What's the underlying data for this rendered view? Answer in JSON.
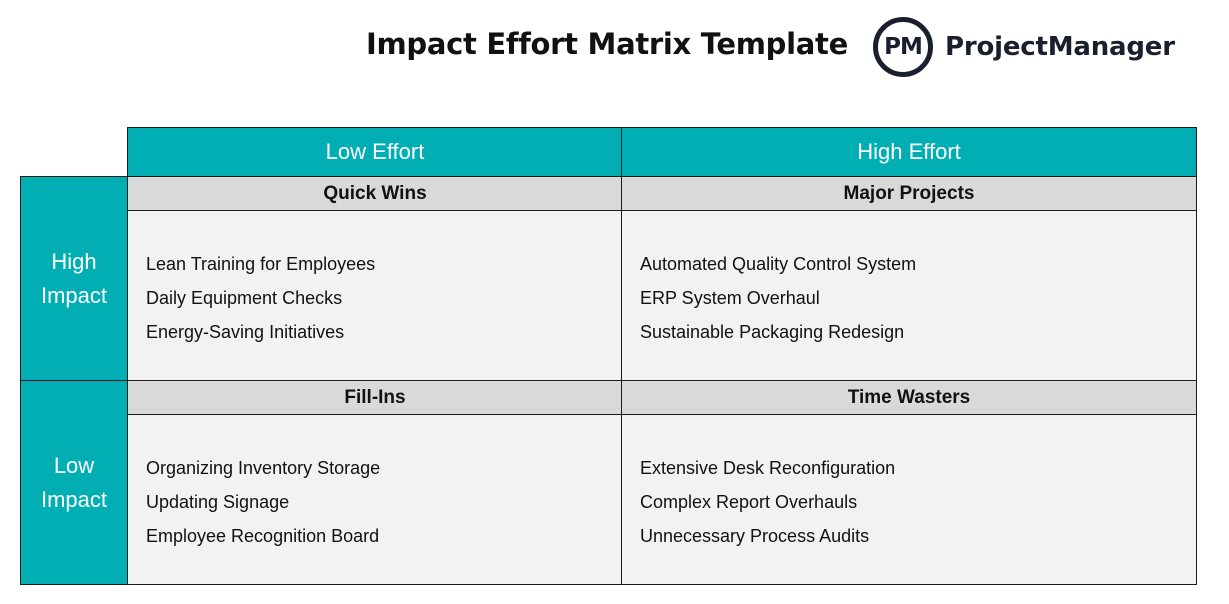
{
  "header": {
    "title": "Impact Effort Matrix Template",
    "logo_mark": "PM",
    "logo_text": "ProjectManager"
  },
  "columns": [
    "Low Effort",
    "High Effort"
  ],
  "rows": [
    {
      "line1": "High",
      "line2": "Impact"
    },
    {
      "line1": "Low",
      "line2": "Impact"
    }
  ],
  "quadrants": {
    "quick_wins": {
      "title": "Quick Wins",
      "items": [
        "Lean Training for Employees",
        "Daily Equipment Checks",
        "Energy-Saving Initiatives"
      ]
    },
    "major_projects": {
      "title": "Major Projects",
      "items": [
        "Automated Quality Control System",
        "ERP System Overhaul",
        "Sustainable Packaging Redesign"
      ]
    },
    "fill_ins": {
      "title": "Fill-Ins",
      "items": [
        "Organizing Inventory Storage",
        "Updating Signage",
        "Employee Recognition Board"
      ]
    },
    "time_wasters": {
      "title": "Time Wasters",
      "items": [
        "Extensive Desk Reconfiguration",
        "Complex Report Overhauls",
        "Unnecessary Process Audits"
      ]
    }
  },
  "colors": {
    "header_fill": "#00aeb3",
    "title_band": "#d9d9d9",
    "cell_fill": "#f2f2f2"
  }
}
